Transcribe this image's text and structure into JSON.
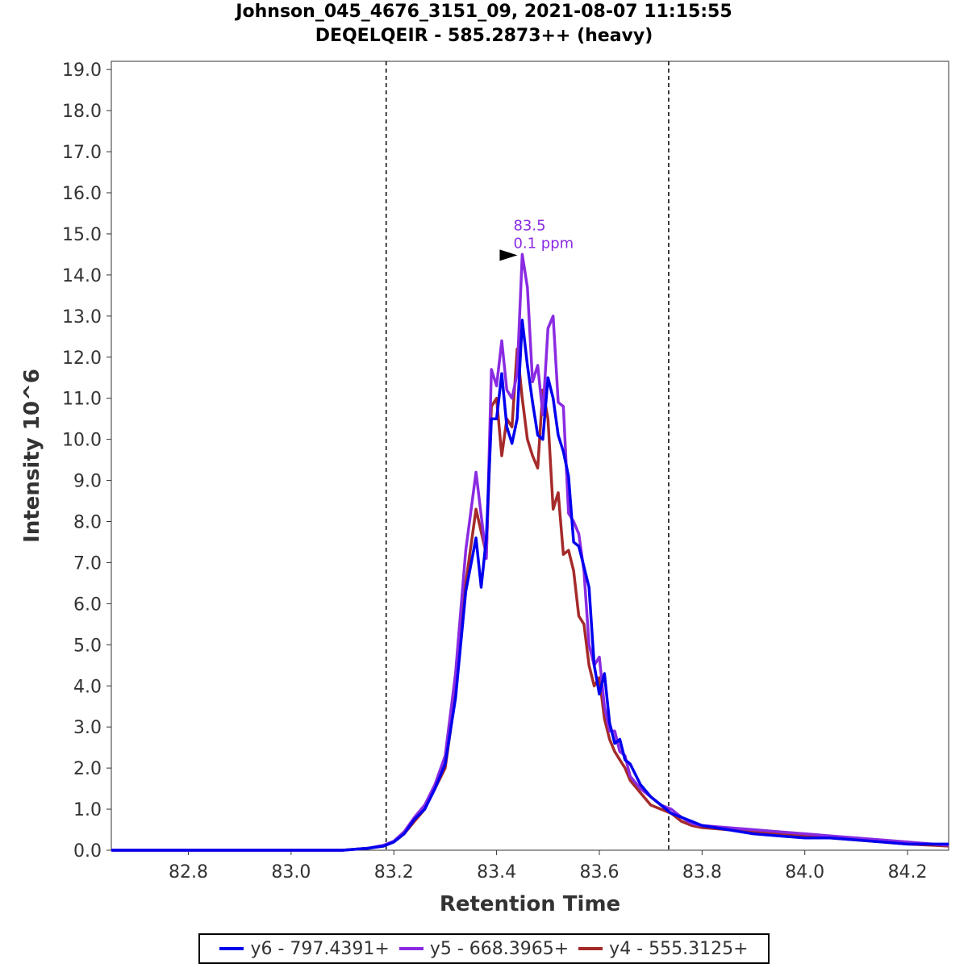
{
  "chart_data": {
    "type": "line",
    "title": "Johnson_045_4676_3151_09, 2021-08-07 11:15:55",
    "subtitle": "DEQELQEIR - 585.2873++ (heavy)",
    "xlabel": "Retention Time",
    "ylabel": "Intensity 10^6",
    "xlim": [
      82.65,
      84.28
    ],
    "ylim": [
      0,
      19.2
    ],
    "x_ticks": [
      "82.8",
      "83.0",
      "83.2",
      "83.4",
      "83.6",
      "83.8",
      "84.0",
      "84.2"
    ],
    "x_tick_values": [
      82.8,
      83.0,
      83.2,
      83.4,
      83.6,
      83.8,
      84.0,
      84.2
    ],
    "y_ticks": [
      "0.0",
      "1.0",
      "2.0",
      "3.0",
      "4.0",
      "5.0",
      "6.0",
      "7.0",
      "8.0",
      "9.0",
      "10.0",
      "11.0",
      "12.0",
      "13.0",
      "14.0",
      "15.0",
      "16.0",
      "17.0",
      "18.0",
      "19.0"
    ],
    "y_tick_values": [
      0,
      1,
      2,
      3,
      4,
      5,
      6,
      7,
      8,
      9,
      10,
      11,
      12,
      13,
      14,
      15,
      16,
      17,
      18,
      19
    ],
    "boundaries": [
      83.185,
      83.735
    ],
    "annotation": {
      "x": 83.45,
      "y": 14.5,
      "lines": [
        "83.5",
        "0.1 ppm"
      ],
      "color": "#8a2be2"
    },
    "grid": false,
    "legend_placement": "bottom",
    "series": [
      {
        "name": "y4 - 555.3125+",
        "color": "#a52a2a",
        "x": [
          82.65,
          82.8,
          82.9,
          83.0,
          83.1,
          83.15,
          83.18,
          83.2,
          83.22,
          83.24,
          83.26,
          83.28,
          83.3,
          83.32,
          83.34,
          83.36,
          83.38,
          83.39,
          83.4,
          83.41,
          83.42,
          83.43,
          83.44,
          83.45,
          83.46,
          83.47,
          83.48,
          83.49,
          83.5,
          83.51,
          83.52,
          83.53,
          83.54,
          83.55,
          83.56,
          83.57,
          83.58,
          83.59,
          83.6,
          83.61,
          83.62,
          83.63,
          83.64,
          83.65,
          83.66,
          83.68,
          83.7,
          83.72,
          83.74,
          83.76,
          83.78,
          83.8,
          83.85,
          83.9,
          83.95,
          84.0,
          84.05,
          84.1,
          84.15,
          84.2,
          84.25,
          84.28
        ],
        "values": [
          0,
          0,
          0,
          0,
          0,
          0.05,
          0.1,
          0.2,
          0.4,
          0.7,
          1.0,
          1.5,
          2.0,
          3.8,
          6.5,
          8.3,
          7.2,
          10.8,
          11.0,
          9.6,
          10.5,
          10.3,
          12.2,
          11.0,
          10.0,
          9.6,
          9.3,
          11.2,
          10.5,
          8.3,
          8.7,
          7.2,
          7.3,
          6.8,
          5.7,
          5.5,
          4.5,
          4.0,
          4.2,
          3.2,
          2.7,
          2.4,
          2.2,
          2.0,
          1.7,
          1.4,
          1.1,
          1.0,
          0.9,
          0.7,
          0.6,
          0.55,
          0.5,
          0.45,
          0.4,
          0.35,
          0.3,
          0.25,
          0.2,
          0.15,
          0.12,
          0.1
        ]
      },
      {
        "name": "y5 - 668.3965+",
        "color": "#8a2be2",
        "x": [
          82.65,
          82.8,
          82.9,
          83.0,
          83.1,
          83.15,
          83.18,
          83.2,
          83.22,
          83.24,
          83.26,
          83.28,
          83.3,
          83.32,
          83.34,
          83.36,
          83.38,
          83.39,
          83.4,
          83.41,
          83.42,
          83.43,
          83.44,
          83.45,
          83.46,
          83.47,
          83.48,
          83.49,
          83.5,
          83.51,
          83.52,
          83.53,
          83.54,
          83.55,
          83.56,
          83.57,
          83.58,
          83.59,
          83.6,
          83.61,
          83.62,
          83.63,
          83.64,
          83.65,
          83.66,
          83.68,
          83.7,
          83.72,
          83.74,
          83.76,
          83.78,
          83.8,
          83.85,
          83.9,
          83.95,
          84.0,
          84.05,
          84.1,
          84.15,
          84.2,
          84.25,
          84.28
        ],
        "values": [
          0,
          0,
          0,
          0,
          0,
          0.05,
          0.12,
          0.22,
          0.45,
          0.8,
          1.1,
          1.6,
          2.3,
          4.3,
          7.3,
          9.2,
          7.1,
          11.7,
          11.3,
          12.4,
          11.2,
          11.0,
          11.6,
          14.5,
          13.7,
          11.4,
          11.8,
          10.6,
          12.7,
          13.0,
          10.9,
          10.8,
          8.2,
          8.0,
          7.7,
          6.8,
          5.0,
          4.5,
          4.7,
          3.5,
          2.9,
          2.9,
          2.4,
          2.3,
          1.8,
          1.5,
          1.3,
          1.1,
          1.0,
          0.8,
          0.65,
          0.6,
          0.55,
          0.5,
          0.45,
          0.4,
          0.35,
          0.3,
          0.25,
          0.2,
          0.15,
          0.12
        ]
      },
      {
        "name": "y6 - 797.4391+",
        "color": "#0000ee",
        "x": [
          82.65,
          82.8,
          82.9,
          83.0,
          83.1,
          83.15,
          83.18,
          83.2,
          83.22,
          83.24,
          83.26,
          83.28,
          83.3,
          83.32,
          83.34,
          83.36,
          83.37,
          83.38,
          83.39,
          83.4,
          83.41,
          83.42,
          83.43,
          83.44,
          83.45,
          83.46,
          83.47,
          83.48,
          83.49,
          83.5,
          83.51,
          83.52,
          83.53,
          83.54,
          83.55,
          83.56,
          83.57,
          83.58,
          83.59,
          83.6,
          83.61,
          83.62,
          83.63,
          83.64,
          83.65,
          83.66,
          83.68,
          83.7,
          83.72,
          83.74,
          83.76,
          83.78,
          83.8,
          83.85,
          83.9,
          83.95,
          84.0,
          84.05,
          84.1,
          84.15,
          84.2,
          84.25,
          84.28
        ],
        "values": [
          0,
          0,
          0,
          0,
          0,
          0.05,
          0.1,
          0.2,
          0.4,
          0.75,
          1.0,
          1.5,
          2.1,
          3.7,
          6.3,
          7.6,
          6.4,
          7.6,
          10.5,
          10.5,
          11.6,
          10.3,
          9.9,
          10.5,
          12.9,
          11.8,
          10.9,
          10.1,
          10.0,
          11.5,
          11.0,
          10.1,
          9.7,
          9.1,
          7.5,
          7.4,
          6.9,
          6.4,
          4.5,
          3.8,
          4.3,
          3.1,
          2.6,
          2.7,
          2.2,
          2.1,
          1.6,
          1.3,
          1.1,
          0.9,
          0.8,
          0.7,
          0.6,
          0.5,
          0.4,
          0.35,
          0.3,
          0.3,
          0.25,
          0.2,
          0.15,
          0.15,
          0.15
        ]
      }
    ]
  }
}
